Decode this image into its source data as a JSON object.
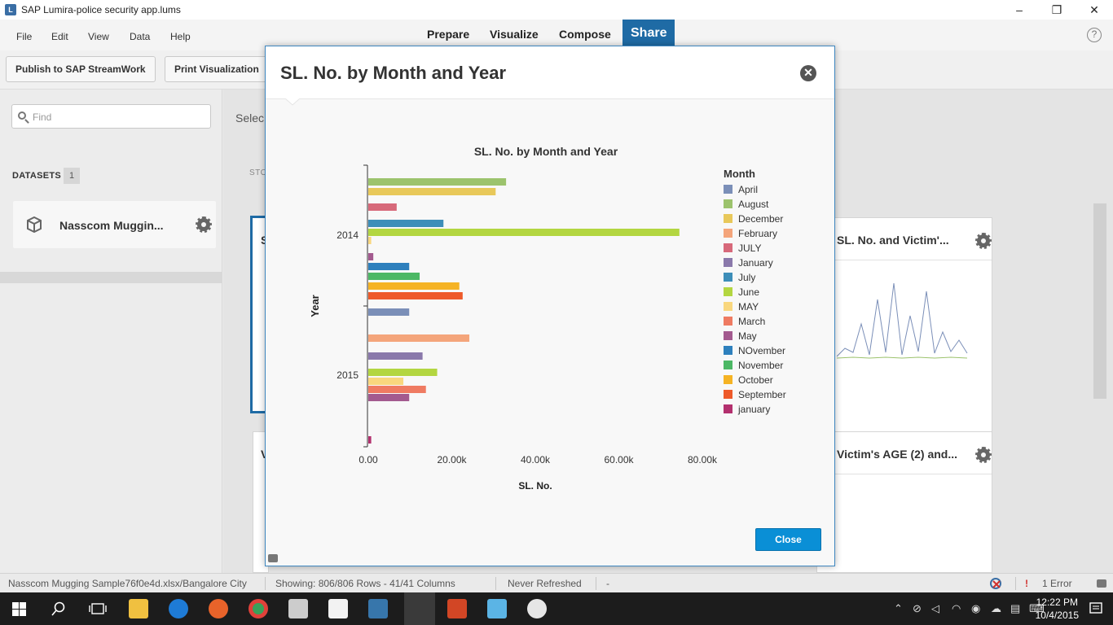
{
  "window": {
    "title": "SAP Lumira-police security app.lums",
    "minimize": "–",
    "maximize": "❐",
    "close": "✕"
  },
  "menu": {
    "items": [
      "File",
      "Edit",
      "View",
      "Data",
      "Help"
    ]
  },
  "modes": {
    "tabs": [
      "Prepare",
      "Visualize",
      "Compose",
      "Share"
    ],
    "active": "Share",
    "help": "?"
  },
  "toolbar": {
    "publish": "Publish to SAP StreamWork",
    "print": "Print Visualization"
  },
  "left": {
    "search_placeholder": "Find",
    "datasets_label": "DATASETS",
    "datasets_count": "1",
    "dataset_name": "Nasscom Muggin..."
  },
  "main": {
    "select_label": "Selec",
    "story_label": "STO",
    "card1_title_fragment": "S",
    "card2_title": "SL.   No. and Victim'...",
    "card3_title_fragment": "V",
    "card4_title": "Victim's AGE (2) and..."
  },
  "dialog": {
    "title": "SL. No. by Month and Year",
    "close_label": "Close"
  },
  "chart_data": {
    "type": "bar",
    "orientation": "horizontal",
    "title": "SL. No. by Month and Year",
    "xlabel": "SL. No.",
    "ylabel": "Year",
    "xlim": [
      0,
      80000
    ],
    "x_ticks": [
      "0.00",
      "20.00k",
      "40.00k",
      "60.00k",
      "80.00k"
    ],
    "legend_title": "Month",
    "legend_position": "right",
    "legend": [
      {
        "name": "April",
        "color": "#7b8fb8"
      },
      {
        "name": "August",
        "color": "#9cc36d"
      },
      {
        "name": "December",
        "color": "#e8c85a"
      },
      {
        "name": "February",
        "color": "#f4a57b"
      },
      {
        "name": "JULY",
        "color": "#d7697a"
      },
      {
        "name": "January",
        "color": "#8a79ab"
      },
      {
        "name": "July",
        "color": "#3d8eb9"
      },
      {
        "name": "June",
        "color": "#b3d641"
      },
      {
        "name": "MAY",
        "color": "#f9d77e"
      },
      {
        "name": "March",
        "color": "#ef7b62"
      },
      {
        "name": "May",
        "color": "#a35a8f"
      },
      {
        "name": "NOvember",
        "color": "#2e80bd"
      },
      {
        "name": "November",
        "color": "#4cb865"
      },
      {
        "name": "October",
        "color": "#f5b324"
      },
      {
        "name": "September",
        "color": "#ee5a2a"
      },
      {
        "name": "january",
        "color": "#b3306e"
      }
    ],
    "groups": [
      {
        "year": "2014",
        "bars": [
          {
            "month": "August",
            "value": 33000
          },
          {
            "month": "December",
            "value": 30500
          },
          {
            "month": "JULY",
            "value": 6800
          },
          {
            "month": "July",
            "value": 18000
          },
          {
            "month": "June",
            "value": 74500
          },
          {
            "month": "MAY",
            "value": 700
          },
          {
            "month": "May",
            "value": 1200
          },
          {
            "month": "NOvember",
            "value": 9800
          },
          {
            "month": "November",
            "value": 12300
          },
          {
            "month": "October",
            "value": 21800
          },
          {
            "month": "September",
            "value": 22600
          }
        ]
      },
      {
        "year": "2015",
        "bars": [
          {
            "month": "April",
            "value": 9800
          },
          {
            "month": "February",
            "value": 24200
          },
          {
            "month": "January",
            "value": 13000
          },
          {
            "month": "June",
            "value": 16500
          },
          {
            "month": "MAY",
            "value": 8400
          },
          {
            "month": "March",
            "value": 13800
          },
          {
            "month": "May",
            "value": 9800
          },
          {
            "month": "january",
            "value": 700
          }
        ]
      }
    ]
  },
  "status": {
    "file": "Nasscom Mugging Sample76f0e4d.xlsx/Bangalore City",
    "showing": "Showing: 806/806 Rows - 41/41 Columns",
    "refreshed": "Never Refreshed",
    "dash": "-",
    "errors": "1 Error"
  },
  "taskbar": {
    "time": "12:22 PM",
    "date": "10/4/2015"
  },
  "colors": {
    "accent": "#1f6ba5",
    "close_button": "#0a8fd6"
  }
}
